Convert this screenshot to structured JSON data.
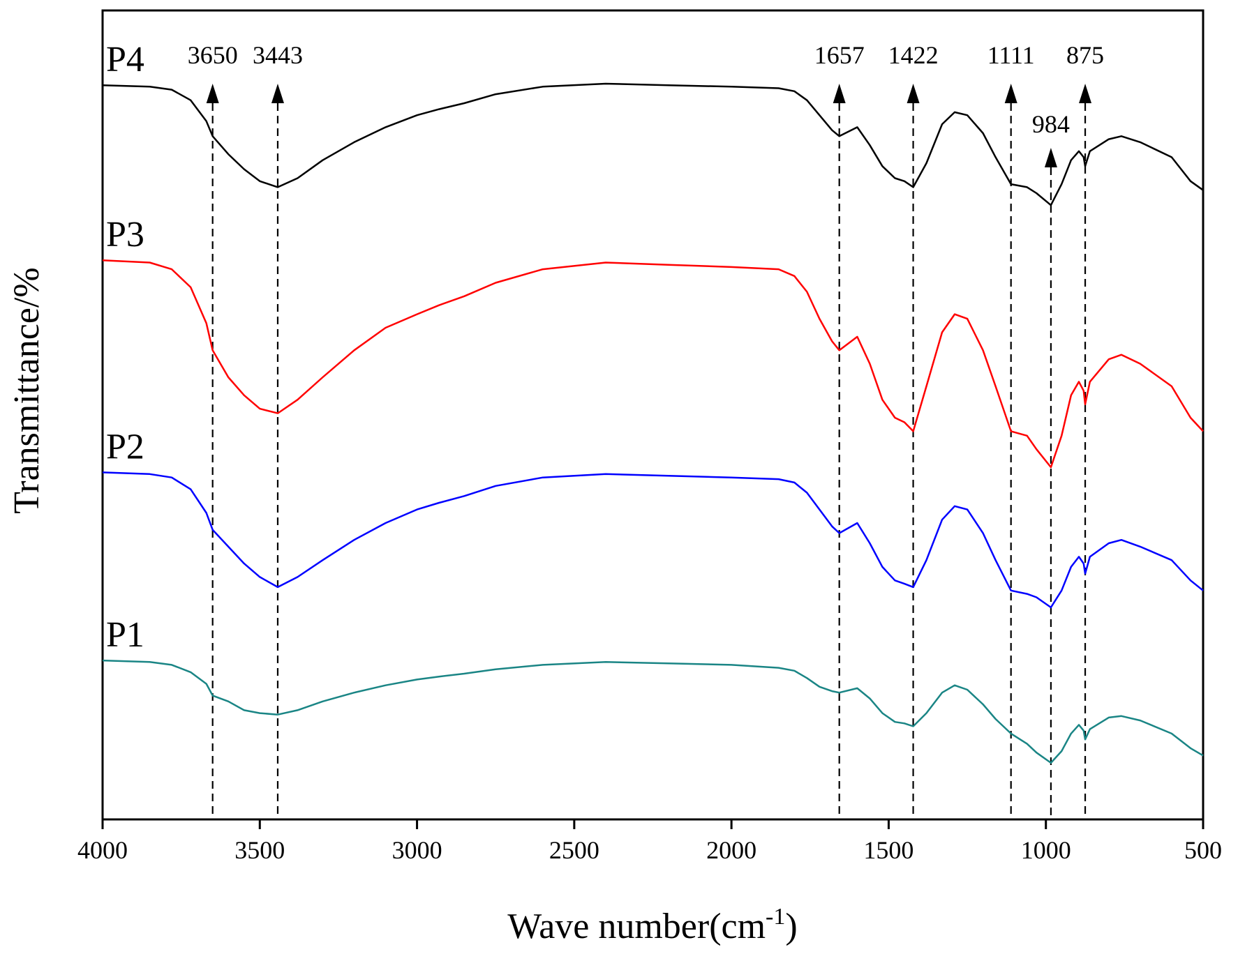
{
  "chart_data": {
    "type": "line",
    "xlabel": "Wave number(cm",
    "xlabel_sup": "-1",
    "xlabel_end": ")",
    "ylabel": "Transmittance/%",
    "xlim": [
      4000,
      500
    ],
    "x_reversed": true,
    "xticks": [
      4000,
      3500,
      3000,
      2500,
      2000,
      1500,
      1000,
      500
    ],
    "grid": false,
    "y_ticks_shown": false,
    "series": [
      {
        "name": "P4",
        "color": "#000000",
        "x": [
          4000,
          3850,
          3780,
          3720,
          3670,
          3650,
          3600,
          3550,
          3500,
          3443,
          3380,
          3300,
          3200,
          3100,
          3000,
          2930,
          2850,
          2750,
          2600,
          2400,
          2200,
          2000,
          1850,
          1800,
          1760,
          1720,
          1680,
          1657,
          1600,
          1560,
          1520,
          1480,
          1450,
          1422,
          1380,
          1330,
          1290,
          1250,
          1200,
          1160,
          1111,
          1060,
          1030,
          984,
          950,
          920,
          895,
          880,
          875,
          860,
          800,
          760,
          700,
          600,
          540,
          500
        ],
        "y": [
          98,
          97.5,
          96.5,
          93,
          86,
          81,
          75,
          70,
          66,
          64,
          67,
          73,
          79,
          84,
          88,
          90,
          92,
          95,
          97.5,
          98.5,
          98,
          97.5,
          97,
          96,
          93,
          88,
          83,
          81,
          84,
          78,
          71,
          67,
          66,
          64,
          72,
          85,
          89,
          88,
          82,
          74,
          65,
          64,
          62,
          58,
          65,
          73,
          76,
          74,
          71,
          76,
          80,
          81,
          79,
          74,
          66,
          63
        ]
      },
      {
        "name": "P3",
        "color": "#ff0000",
        "x": [
          4000,
          3850,
          3780,
          3720,
          3670,
          3650,
          3600,
          3550,
          3500,
          3443,
          3380,
          3300,
          3200,
          3100,
          3000,
          2930,
          2850,
          2750,
          2600,
          2400,
          2200,
          2000,
          1850,
          1800,
          1760,
          1720,
          1680,
          1657,
          1600,
          1560,
          1520,
          1480,
          1450,
          1422,
          1380,
          1330,
          1290,
          1250,
          1200,
          1160,
          1111,
          1060,
          1030,
          984,
          950,
          920,
          895,
          880,
          875,
          860,
          800,
          760,
          700,
          600,
          540,
          500
        ],
        "y": [
          98,
          97.5,
          96,
          92,
          84,
          78,
          72,
          68,
          65,
          64,
          67,
          72,
          78,
          83,
          86,
          88,
          90,
          93,
          96,
          97.5,
          97,
          96.5,
          96,
          94.5,
          91,
          85,
          80,
          78,
          81,
          75,
          67,
          63,
          62,
          60,
          70,
          82,
          86,
          85,
          78,
          70,
          60,
          59,
          56,
          52,
          59,
          68,
          71,
          69,
          66,
          71,
          76,
          77,
          75,
          70,
          63,
          60
        ]
      },
      {
        "name": "P2",
        "color": "#0000ff",
        "x": [
          4000,
          3850,
          3780,
          3720,
          3670,
          3650,
          3600,
          3550,
          3500,
          3443,
          3380,
          3300,
          3200,
          3100,
          3000,
          2930,
          2850,
          2750,
          2600,
          2400,
          2200,
          2000,
          1850,
          1800,
          1760,
          1720,
          1680,
          1657,
          1600,
          1560,
          1520,
          1480,
          1450,
          1422,
          1380,
          1330,
          1290,
          1250,
          1200,
          1160,
          1111,
          1060,
          1030,
          984,
          950,
          920,
          895,
          880,
          875,
          860,
          800,
          760,
          700,
          600,
          540,
          500
        ],
        "y": [
          98,
          97.5,
          96.5,
          93,
          86,
          81,
          76,
          71,
          67,
          64,
          67,
          72,
          78,
          83,
          87,
          89,
          91,
          94,
          96.5,
          97.5,
          97,
          96.5,
          96,
          95,
          92,
          87,
          82,
          80,
          83,
          77,
          70,
          66,
          65,
          64,
          72,
          84,
          88,
          87,
          80,
          72,
          63,
          62,
          61,
          58,
          63,
          70,
          73,
          71,
          68,
          73,
          77,
          78,
          76,
          72,
          66,
          63
        ]
      },
      {
        "name": "P1",
        "color": "#1a8585",
        "x": [
          4000,
          3850,
          3780,
          3720,
          3670,
          3650,
          3600,
          3550,
          3500,
          3443,
          3380,
          3300,
          3200,
          3100,
          3000,
          2930,
          2850,
          2750,
          2600,
          2400,
          2200,
          2000,
          1850,
          1800,
          1760,
          1720,
          1680,
          1657,
          1600,
          1560,
          1520,
          1480,
          1450,
          1422,
          1380,
          1330,
          1290,
          1250,
          1200,
          1160,
          1111,
          1060,
          1030,
          984,
          950,
          920,
          895,
          880,
          875,
          860,
          800,
          760,
          700,
          600,
          540,
          500
        ],
        "y": [
          98,
          97.5,
          96.5,
          94,
          90,
          86,
          84,
          81,
          80,
          79.5,
          81,
          84,
          87,
          89.5,
          91.5,
          92.5,
          93.5,
          95,
          96.5,
          97.5,
          97,
          96.5,
          95.5,
          94.5,
          92,
          89,
          87.5,
          87,
          88.5,
          85,
          80,
          77,
          76.5,
          75.5,
          80,
          87,
          89.5,
          88,
          83,
          78,
          73,
          69.5,
          66.5,
          63,
          67,
          73,
          76,
          74,
          71,
          74.5,
          78.5,
          79,
          77.5,
          73,
          68,
          65.5
        ]
      }
    ],
    "peaks": [
      {
        "label": "3650",
        "x": 3650,
        "arrow_series": "P4"
      },
      {
        "label": "3443",
        "x": 3443,
        "arrow_series": "P4"
      },
      {
        "label": "1657",
        "x": 1657,
        "arrow_series": "P4"
      },
      {
        "label": "1422",
        "x": 1422,
        "arrow_series": "P4"
      },
      {
        "label": "1111",
        "x": 1111,
        "arrow_series": "P4"
      },
      {
        "label": "984",
        "x": 984,
        "arrow_series": "P4"
      },
      {
        "label": "875",
        "x": 875,
        "arrow_series": "P4"
      }
    ]
  }
}
